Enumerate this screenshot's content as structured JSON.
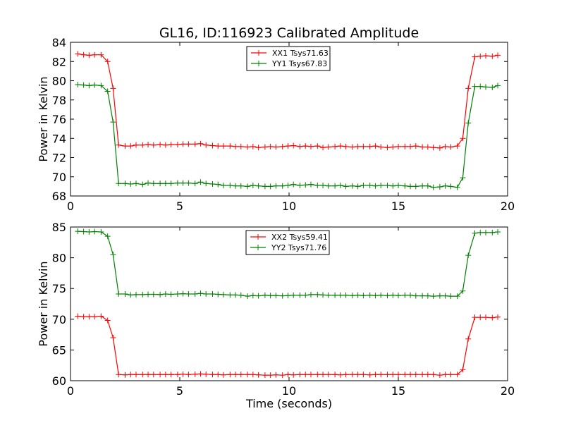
{
  "figure": {
    "title": "GL16, ID:116923 Calibrated Amplitude",
    "xlabel": "Time (seconds)"
  },
  "colors": {
    "XX": "#ff0000",
    "YY": "#008000",
    "axes": "#000000",
    "background": "#ffffff"
  },
  "chart_data": [
    {
      "type": "line",
      "title": "GL16, ID:116923 Calibrated Amplitude",
      "xlabel": "",
      "ylabel": "Power in Kelvin",
      "xlim": [
        0,
        20
      ],
      "ylim": [
        68,
        84
      ],
      "xticks": [
        0,
        5,
        10,
        15,
        20
      ],
      "yticks": [
        68,
        70,
        72,
        74,
        76,
        78,
        80,
        82,
        84
      ],
      "grid": false,
      "legend": "top-center",
      "marker": "+",
      "x": [
        0.33,
        0.6,
        0.85,
        1.1,
        1.4,
        1.7,
        1.95,
        2.2,
        2.5,
        2.75,
        3.0,
        3.3,
        3.55,
        3.8,
        4.1,
        4.35,
        4.6,
        4.9,
        5.15,
        5.4,
        5.7,
        5.95,
        6.2,
        6.5,
        6.75,
        7.0,
        7.3,
        7.55,
        7.8,
        8.1,
        8.35,
        8.6,
        8.9,
        9.15,
        9.4,
        9.7,
        9.95,
        10.2,
        10.5,
        10.75,
        11.0,
        11.3,
        11.55,
        11.8,
        12.1,
        12.35,
        12.6,
        12.9,
        13.15,
        13.4,
        13.7,
        13.95,
        14.2,
        14.5,
        14.75,
        15.0,
        15.3,
        15.55,
        15.8,
        16.1,
        16.35,
        16.6,
        16.9,
        17.15,
        17.4,
        17.7,
        17.95,
        18.2,
        18.5,
        18.75,
        19.0,
        19.3,
        19.55
      ],
      "series": [
        {
          "name": "XX1 Tsys71.63",
          "color": "#ff0000",
          "values": [
            82.8,
            82.7,
            82.65,
            82.7,
            82.7,
            82.0,
            79.2,
            73.3,
            73.2,
            73.2,
            73.3,
            73.3,
            73.35,
            73.3,
            73.35,
            73.3,
            73.35,
            73.35,
            73.4,
            73.4,
            73.4,
            73.45,
            73.3,
            73.25,
            73.2,
            73.2,
            73.2,
            73.15,
            73.15,
            73.1,
            73.15,
            73.05,
            73.1,
            73.15,
            73.1,
            73.15,
            73.2,
            73.25,
            73.15,
            73.2,
            73.15,
            73.2,
            73.05,
            73.1,
            73.15,
            73.2,
            73.15,
            73.1,
            73.15,
            73.15,
            73.15,
            73.2,
            73.1,
            73.05,
            73.1,
            73.15,
            73.15,
            73.15,
            73.2,
            73.1,
            73.1,
            73.05,
            73.0,
            73.15,
            73.1,
            73.2,
            74.0,
            79.2,
            82.5,
            82.55,
            82.6,
            82.55,
            82.65
          ]
        },
        {
          "name": "YY1 Tsys67.83",
          "color": "#008000",
          "values": [
            79.6,
            79.55,
            79.5,
            79.55,
            79.5,
            78.9,
            75.7,
            69.3,
            69.3,
            69.25,
            69.3,
            69.2,
            69.35,
            69.3,
            69.3,
            69.3,
            69.3,
            69.35,
            69.35,
            69.35,
            69.3,
            69.45,
            69.3,
            69.25,
            69.2,
            69.1,
            69.1,
            69.05,
            69.05,
            69.0,
            69.1,
            69.05,
            69.0,
            69.0,
            69.05,
            69.05,
            69.1,
            69.2,
            69.1,
            69.15,
            69.2,
            69.1,
            69.1,
            69.05,
            69.05,
            69.1,
            69.0,
            69.05,
            69.0,
            69.1,
            69.1,
            69.05,
            69.1,
            69.1,
            69.05,
            69.1,
            69.05,
            69.0,
            69.0,
            69.05,
            69.05,
            68.9,
            68.95,
            69.05,
            69.0,
            68.9,
            69.9,
            75.6,
            79.4,
            79.4,
            79.35,
            79.3,
            79.5
          ]
        }
      ]
    },
    {
      "type": "line",
      "title": "",
      "xlabel": "Time (seconds)",
      "ylabel": "Power in Kelvin",
      "xlim": [
        0,
        20
      ],
      "ylim": [
        60,
        85
      ],
      "xticks": [
        0,
        5,
        10,
        15,
        20
      ],
      "yticks": [
        60,
        65,
        70,
        75,
        80,
        85
      ],
      "grid": false,
      "legend": "top-center",
      "marker": "+",
      "x": [
        0.33,
        0.6,
        0.85,
        1.1,
        1.4,
        1.7,
        1.95,
        2.2,
        2.5,
        2.75,
        3.0,
        3.3,
        3.55,
        3.8,
        4.1,
        4.35,
        4.6,
        4.9,
        5.15,
        5.4,
        5.7,
        5.95,
        6.2,
        6.5,
        6.75,
        7.0,
        7.3,
        7.55,
        7.8,
        8.1,
        8.35,
        8.6,
        8.9,
        9.15,
        9.4,
        9.7,
        9.95,
        10.2,
        10.5,
        10.75,
        11.0,
        11.3,
        11.55,
        11.8,
        12.1,
        12.35,
        12.6,
        12.9,
        13.15,
        13.4,
        13.7,
        13.95,
        14.2,
        14.5,
        14.75,
        15.0,
        15.3,
        15.55,
        15.8,
        16.1,
        16.35,
        16.6,
        16.9,
        17.15,
        17.4,
        17.7,
        17.95,
        18.2,
        18.5,
        18.75,
        19.0,
        19.3,
        19.55
      ],
      "series": [
        {
          "name": "XX2 Tsys59.41",
          "color": "#ff0000",
          "values": [
            70.5,
            70.4,
            70.4,
            70.4,
            70.5,
            69.8,
            67.0,
            61.0,
            60.95,
            61.0,
            61.0,
            61.0,
            61.0,
            61.0,
            61.0,
            61.0,
            61.0,
            61.0,
            61.05,
            61.0,
            61.05,
            61.1,
            61.05,
            61.0,
            61.0,
            60.95,
            61.0,
            61.0,
            61.0,
            61.0,
            61.0,
            60.95,
            60.9,
            60.9,
            60.95,
            60.9,
            61.0,
            60.95,
            61.0,
            61.0,
            61.0,
            61.0,
            61.0,
            61.0,
            61.0,
            60.95,
            61.0,
            61.0,
            61.0,
            61.0,
            60.95,
            61.0,
            61.0,
            61.0,
            61.0,
            61.0,
            61.0,
            61.0,
            61.0,
            61.0,
            61.0,
            61.0,
            60.9,
            61.0,
            61.0,
            61.0,
            61.8,
            66.8,
            70.3,
            70.3,
            70.3,
            70.25,
            70.35
          ]
        },
        {
          "name": "YY2 Tsys71.76",
          "color": "#008000",
          "values": [
            84.3,
            84.25,
            84.2,
            84.25,
            84.2,
            83.5,
            80.5,
            74.1,
            74.1,
            73.95,
            74.0,
            74.0,
            74.05,
            74.05,
            74.0,
            74.1,
            74.05,
            74.1,
            74.15,
            74.1,
            74.1,
            74.2,
            74.1,
            74.1,
            74.05,
            74.0,
            73.95,
            73.95,
            73.9,
            73.75,
            73.85,
            73.8,
            73.9,
            73.85,
            73.85,
            73.8,
            73.85,
            73.9,
            73.9,
            73.9,
            74.0,
            74.0,
            73.95,
            73.9,
            73.9,
            73.9,
            73.9,
            73.85,
            73.9,
            73.85,
            73.9,
            73.85,
            73.9,
            73.85,
            73.9,
            73.85,
            73.9,
            73.9,
            73.8,
            73.8,
            73.8,
            73.75,
            73.8,
            73.8,
            73.75,
            73.75,
            74.6,
            80.4,
            84.0,
            84.1,
            84.1,
            84.1,
            84.2
          ]
        }
      ]
    }
  ]
}
